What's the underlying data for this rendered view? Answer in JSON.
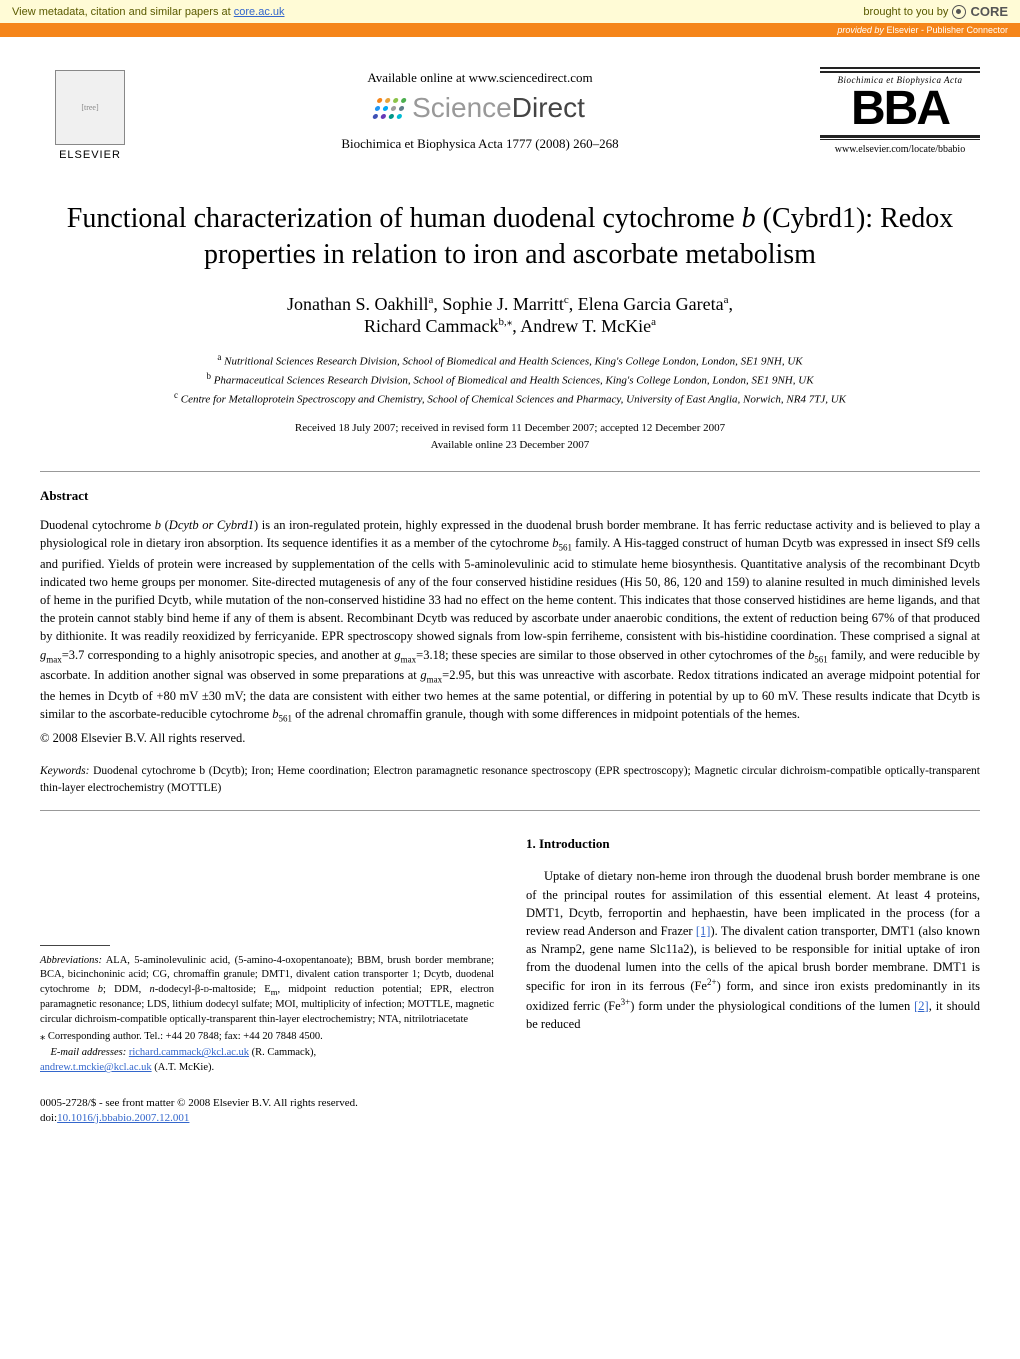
{
  "core_banner": {
    "left_prefix": "View metadata, citation and similar papers at ",
    "left_link": "core.ac.uk",
    "right_prefix": "brought to you by ",
    "logo": "CORE"
  },
  "elsevier_bar": {
    "text_prefix": "provided by ",
    "text_source": "Elsevier - Publisher Connector"
  },
  "header": {
    "elsevier_label": "ELSEVIER",
    "available_online": "Available online at www.sciencedirect.com",
    "sciencedirect": "ScienceDirect",
    "journal_ref": "Biochimica et Biophysica Acta 1777 (2008) 260–268",
    "bba_subtitle": "Biochimica et Biophysica Acta",
    "bba_main": "BBA",
    "bba_url": "www.elsevier.com/locate/bbabio"
  },
  "title": {
    "line": "Functional characterization of human duodenal cytochrome b (Cybrd1): Redox properties in relation to iron and ascorbate metabolism"
  },
  "authors": {
    "a1_name": "Jonathan S. Oakhill",
    "a1_sup": "a",
    "a2_name": "Sophie J. Marritt",
    "a2_sup": "c",
    "a3_name": "Elena Garcia Gareta",
    "a3_sup": "a",
    "a4_name": "Richard Cammack",
    "a4_sup": "b,",
    "a4_star": "⁎",
    "a5_name": "Andrew T. McKie",
    "a5_sup": "a"
  },
  "affiliations": {
    "a": "Nutritional Sciences Research Division, School of Biomedical and Health Sciences, King's College London, London, SE1 9NH, UK",
    "b": "Pharmaceutical Sciences Research Division, School of Biomedical and Health Sciences, King's College London, London, SE1 9NH, UK",
    "c": "Centre for Metalloprotein Spectroscopy and Chemistry, School of Chemical Sciences and Pharmacy, University of East Anglia, Norwich, NR4 7TJ, UK"
  },
  "dates": {
    "received": "Received 18 July 2007; received in revised form 11 December 2007; accepted 12 December 2007",
    "available": "Available online 23 December 2007"
  },
  "abstract": {
    "heading": "Abstract",
    "body_html": "Duodenal cytochrome <i>b</i> (<i>Dcytb or Cybrd1</i>) is an iron-regulated protein, highly expressed in the duodenal brush border membrane. It has ferric reductase activity and is believed to play a physiological role in dietary iron absorption. Its sequence identifies it as a member of the cytochrome <i>b</i><sub>561</sub> family. A His-tagged construct of human Dcytb was expressed in insect Sf9 cells and purified. Yields of protein were increased by supplementation of the cells with 5-aminolevulinic acid to stimulate heme biosynthesis. Quantitative analysis of the recombinant Dcytb indicated two heme groups per monomer. Site-directed mutagenesis of any of the four conserved histidine residues (His 50, 86, 120 and 159) to alanine resulted in much diminished levels of heme in the purified Dcytb, while mutation of the non-conserved histidine 33 had no effect on the heme content. This indicates that those conserved histidines are heme ligands, and that the protein cannot stably bind heme if any of them is absent. Recombinant Dcytb was reduced by ascorbate under anaerobic conditions, the extent of reduction being 67% of that produced by dithionite. It was readily reoxidized by ferricyanide. EPR spectroscopy showed signals from low-spin ferriheme, consistent with bis-histidine coordination. These comprised a signal at <i>g</i><sub>max</sub>=3.7 corresponding to a highly anisotropic species, and another at <i>g</i><sub>max</sub>=3.18; these species are similar to those observed in other cytochromes of the <i>b</i><sub>561</sub> family, and were reducible by ascorbate. In addition another signal was observed in some preparations at <i>g</i><sub>max</sub>=2.95, but this was unreactive with ascorbate. Redox titrations indicated an average midpoint potential for the hemes in Dcytb of +80 mV ±30 mV; the data are consistent with either two hemes at the same potential, or differing in potential by up to 60 mV. These results indicate that Dcytb is similar to the ascorbate-reducible cytochrome <i>b</i><sub>561</sub> of the adrenal chromaffin granule, though with some differences in midpoint potentials of the hemes.",
    "copyright": "© 2008 Elsevier B.V. All rights reserved."
  },
  "keywords": {
    "label": "Keywords:",
    "text": " Duodenal cytochrome b (Dcytb); Iron; Heme coordination; Electron paramagnetic resonance spectroscopy (EPR spectroscopy); Magnetic circular dichroism-compatible optically-transparent thin-layer electrochemistry (MOTTLE)"
  },
  "footnotes": {
    "abbrev_label": "Abbreviations:",
    "abbrev_text_html": " ALA, 5-aminolevulinic acid, (5-amino-4-oxopentanoate); BBM, brush border membrane; BCA, bicinchoninic acid; CG, chromaffin granule; DMT1, divalent cation transporter 1; Dcytb, duodenal cytochrome <i>b</i>; DDM, <i>n</i>-dodecyl-β-<span style='font-variant:small-caps'>d</span>-maltoside; E<sub>m</sub>, midpoint reduction potential; EPR, electron paramagnetic resonance; LDS, lithium dodecyl sulfate; MOI, multiplicity of infection; MOTTLE, magnetic circular dichroism-compatible optically-transparent thin-layer electrochemistry; NTA, nitrilotriacetate",
    "corr": "⁎ Corresponding author. Tel.: +44 20 7848; fax: +44 20 7848 4500.",
    "email_label": "E-mail addresses:",
    "email1": "richard.cammack@kcl.ac.uk",
    "email1_name": " (R. Cammack),",
    "email2": "andrew.t.mckie@kcl.ac.uk",
    "email2_name": " (A.T. McKie)."
  },
  "introduction": {
    "heading": "1. Introduction",
    "body_html": "Uptake of dietary non-heme iron through the duodenal brush border membrane is one of the principal routes for assimilation of this essential element. At least 4 proteins, DMT1, Dcytb, ferroportin and hephaestin, have been implicated in the process (for a review read Anderson and Frazer <a href='#'>[1]</a>). The divalent cation transporter, DMT1 (also known as Nramp2, gene name Slc11a2), is believed to be responsible for initial uptake of iron from the duodenal lumen into the cells of the apical brush border membrane. DMT1 is specific for iron in its ferrous (Fe<sup>2+</sup>) form, and since iron exists predominantly in its oxidized ferric (Fe<sup>3+</sup>) form under the physiological conditions of the lumen <a href='#'>[2]</a>, it should be reduced"
  },
  "footer": {
    "line1": "0005-2728/$ - see front matter © 2008 Elsevier B.V. All rights reserved.",
    "doi_prefix": "doi:",
    "doi": "10.1016/j.bbabio.2007.12.001"
  },
  "colors": {
    "core_bg": "#fffbd6",
    "elsevier_orange": "#f5851a",
    "link": "#3366cc",
    "sd_colors": [
      "#f5851a",
      "#e8a33a",
      "#8bc34a",
      "#4caf50",
      "#2196f3",
      "#03a9f4",
      "#9e9e9e",
      "#607d8b",
      "#3f51b5",
      "#673ab7",
      "#009688",
      "#00bcd4"
    ]
  }
}
